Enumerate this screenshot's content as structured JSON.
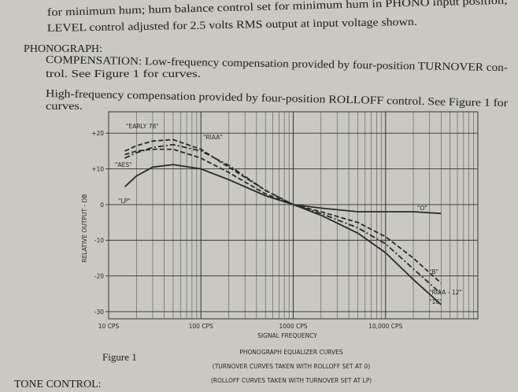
{
  "document": {
    "lines": [
      "for minimum hum; hum balance control set for minimum hum in PHONO input position;",
      "LEVEL control adjusted for 2.5 volts RMS output at input voltage shown.",
      "PHONOGRAPH:",
      "COMPENSATION: Low-frequency compensation provided by four-position TURNOVER con-",
      "trol.  See Figure 1 for curves.",
      "High-frequency compensation provided by four-position ROLLOFF control.  See Figure 1 for",
      "curves."
    ],
    "figure_caption": "Figure 1",
    "notes": [
      "(TURNOVER CURVES TAKEN WITH ROLLOFF SET AT 0)",
      "(ROLLOFF CURVES TAKEN WITH TURNOVER SET AT LP)"
    ],
    "next_heading": "TONE CONTROL:"
  },
  "chart_data": {
    "type": "line",
    "title": "PHONOGRAPH EQUALIZER CURVES",
    "x_label": "SIGNAL  FREQUENCY",
    "y_label": "RELATIVE OUTPUT - DB",
    "log_x": true,
    "grid": true,
    "minor_grid": true,
    "xlim": [
      10,
      100000
    ],
    "ylim": [
      -32,
      26
    ],
    "xticks": [
      {
        "value": 10,
        "label": "10 CPS"
      },
      {
        "value": 100,
        "label": "100 CPS"
      },
      {
        "value": 1000,
        "label": "1000 CPS"
      },
      {
        "value": 10000,
        "label": "10,000 CPS"
      }
    ],
    "yticks": [
      {
        "value": 20,
        "label": "+20"
      },
      {
        "value": 10,
        "label": "+10"
      },
      0,
      -10,
      -20,
      -30
    ],
    "series": [
      {
        "name": "\"EARLY 78\"",
        "color": "#2b2b2b",
        "style": "dashed",
        "x": [
          15,
          20,
          30,
          50,
          100,
          200,
          500,
          1000
        ],
        "values": [
          15,
          16.5,
          17.8,
          18.2,
          15.5,
          10.5,
          4,
          0
        ]
      },
      {
        "name": "\"RIAA\"",
        "color": "#2b2b2b",
        "style": "dashdot",
        "x": [
          15,
          20,
          30,
          50,
          100,
          200,
          500,
          1000
        ],
        "values": [
          13,
          14.5,
          16,
          16.8,
          15,
          11,
          4,
          0
        ]
      },
      {
        "name": "\"AES\"",
        "color": "#2b2b2b",
        "style": "dashed",
        "x": [
          15,
          20,
          30,
          50,
          100,
          200,
          500,
          1000
        ],
        "values": [
          14,
          15,
          15.5,
          15.5,
          13,
          9,
          3,
          0
        ]
      },
      {
        "name": "\"LP\"",
        "color": "#2b2b2b",
        "style": "solid",
        "x": [
          15,
          20,
          30,
          50,
          100,
          200,
          500,
          1000
        ],
        "values": [
          5,
          8,
          10.5,
          11.2,
          10,
          7,
          2.5,
          0
        ]
      },
      {
        "name": "\"O\"",
        "color": "#2b2b2b",
        "style": "solid",
        "x": [
          1000,
          2000,
          5000,
          10000,
          20000,
          40000
        ],
        "values": [
          0,
          -1,
          -2,
          -2,
          -2,
          -2.5
        ]
      },
      {
        "name": "\"B\"",
        "color": "#2b2b2b",
        "style": "dashed",
        "x": [
          1000,
          2000,
          5000,
          10000,
          20000,
          40000
        ],
        "values": [
          0,
          -2,
          -5,
          -9,
          -15,
          -22
        ]
      },
      {
        "name": "\"RIAA - 12\"",
        "color": "#2b2b2b",
        "style": "dashdot",
        "x": [
          1000,
          2000,
          5000,
          10000,
          20000,
          40000
        ],
        "values": [
          0,
          -2.5,
          -6.5,
          -11,
          -18,
          -25
        ]
      },
      {
        "name": "\"16\"",
        "color": "#2b2b2b",
        "style": "solid",
        "x": [
          1000,
          2000,
          5000,
          10000,
          20000,
          40000
        ],
        "values": [
          0,
          -3,
          -8,
          -13.5,
          -21,
          -28
        ]
      }
    ]
  }
}
